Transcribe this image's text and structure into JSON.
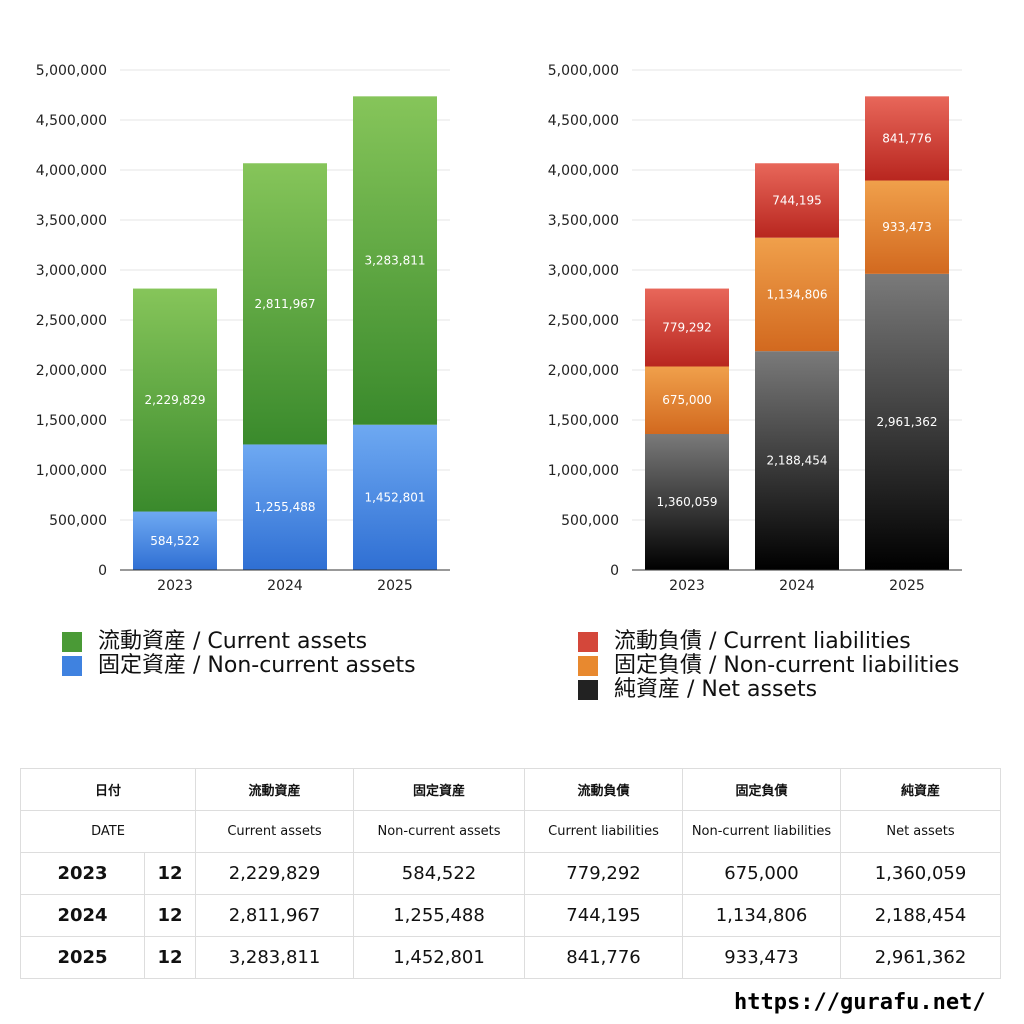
{
  "chart_data": [
    {
      "type": "bar",
      "stacked": true,
      "categories": [
        "2023",
        "2024",
        "2025"
      ],
      "series": [
        {
          "name": "固定資産 / Non-current assets",
          "values": [
            584522,
            1255488,
            1452801
          ],
          "color_top": "#6ea9f2",
          "color_bottom": "#2f6fd3"
        },
        {
          "name": "流動資産 / Current assets",
          "values": [
            2229829,
            2811967,
            3283811
          ],
          "color_top": "#86c55a",
          "color_bottom": "#3a8a2c"
        }
      ],
      "ylim": [
        0,
        5000000
      ],
      "yticks": [
        "0",
        "500,000",
        "1,000,000",
        "1,500,000",
        "2,000,000",
        "2,500,000",
        "3,000,000",
        "3,500,000",
        "4,000,000",
        "4,500,000",
        "5,000,000"
      ],
      "legend_position": "bottom",
      "grid": true
    },
    {
      "type": "bar",
      "stacked": true,
      "categories": [
        "2023",
        "2024",
        "2025"
      ],
      "series": [
        {
          "name": "純資産 / Net assets",
          "values": [
            1360059,
            2188454,
            2961362
          ],
          "color_top": "#7a7a7a",
          "color_bottom": "#000000"
        },
        {
          "name": "固定負債 / Non-current liabilities",
          "values": [
            675000,
            1134806,
            933473
          ],
          "color_top": "#f0a04b",
          "color_bottom": "#d2691f"
        },
        {
          "name": "流動負債 / Current liabilities",
          "values": [
            779292,
            744195,
            841776
          ],
          "color_top": "#e8675a",
          "color_bottom": "#b8261f"
        }
      ],
      "ylim": [
        0,
        5000000
      ],
      "yticks": [
        "0",
        "500,000",
        "1,000,000",
        "1,500,000",
        "2,000,000",
        "2,500,000",
        "3,000,000",
        "3,500,000",
        "4,000,000",
        "4,500,000",
        "5,000,000"
      ],
      "legend_position": "bottom",
      "grid": true
    }
  ],
  "legend_left": [
    {
      "label": "流動資産 / Current assets",
      "color": "#4a9a36"
    },
    {
      "label": "固定資産 / Non-current assets",
      "color": "#3f82e0"
    }
  ],
  "legend_right": [
    {
      "label": "流動負債 / Current liabilities",
      "color": "#d4473a"
    },
    {
      "label": "固定負債 / Non-current liabilities",
      "color": "#e8892f"
    },
    {
      "label": "純資産 / Net assets",
      "color": "#222222"
    }
  ],
  "table": {
    "header_jp": [
      "日付",
      "流動資産",
      "固定資産",
      "流動負債",
      "固定負債",
      "純資産"
    ],
    "header_en": [
      "DATE",
      "Current assets",
      "Non-current assets",
      "Current liabilities",
      "Non-current liabilities",
      "Net assets"
    ],
    "rows": [
      {
        "year": "2023",
        "month": "12",
        "values": [
          "2,229,829",
          "584,522",
          "779,292",
          "675,000",
          "1,360,059"
        ]
      },
      {
        "year": "2024",
        "month": "12",
        "values": [
          "2,811,967",
          "1,255,488",
          "744,195",
          "1,134,806",
          "2,188,454"
        ]
      },
      {
        "year": "2025",
        "month": "12",
        "values": [
          "3,283,811",
          "1,452,801",
          "841,776",
          "933,473",
          "2,961,362"
        ]
      }
    ]
  },
  "site_url": "https://gurafu.net/"
}
